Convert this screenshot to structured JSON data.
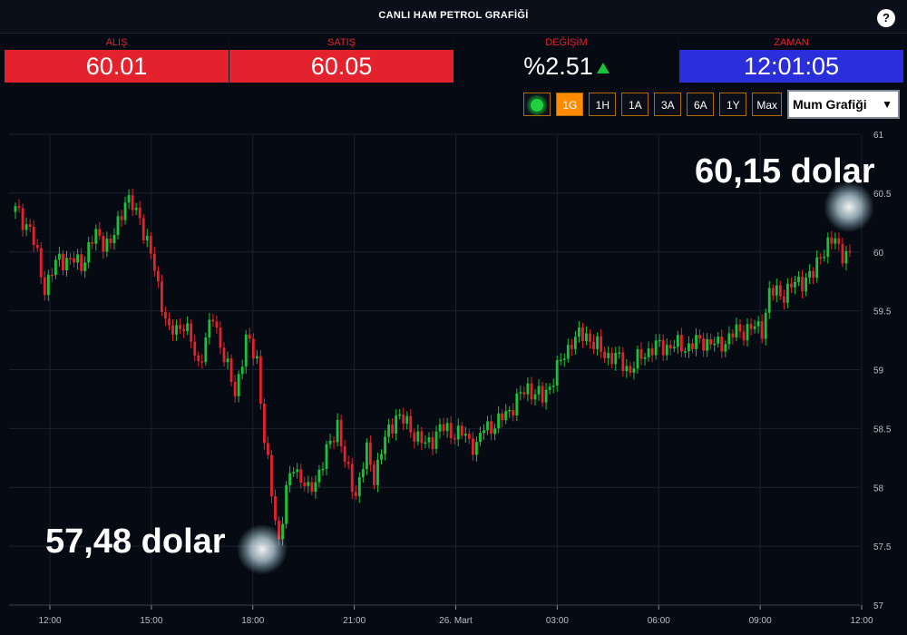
{
  "header": {
    "title": "CANLI HAM PETROL GRAFİĞİ",
    "help_label": "?"
  },
  "quotes": [
    {
      "label": "ALIŞ",
      "value": "60.01"
    },
    {
      "label": "SATIŞ",
      "value": "60.05"
    },
    {
      "label": "DEĞİŞİM",
      "value": "%2.51"
    },
    {
      "label": "ZAMAN",
      "value": "12:01:05"
    }
  ],
  "colors": {
    "up": "#19c23a",
    "down": "#e3222e",
    "accent": "#ff8b00",
    "time_bg": "#2a2edb"
  },
  "toolbar": {
    "ranges": [
      "1G",
      "1H",
      "1A",
      "3A",
      "6A",
      "1Y",
      "Max"
    ],
    "active_range": "1G",
    "chart_type": "Mum Grafiği",
    "live_icon": "live-indicator-icon"
  },
  "annotations": {
    "high_label": "60,15 dolar",
    "low_label": "57,48 dolar"
  },
  "chart_data": {
    "type": "candlestick",
    "x_ticks": [
      "12:00",
      "15:00",
      "18:00",
      "21:00",
      "26. Mart",
      "03:00",
      "06:00",
      "09:00",
      "12:00"
    ],
    "y_ticks": [
      57,
      57.5,
      58,
      58.5,
      59,
      59.5,
      60,
      60.5,
      61
    ],
    "ylim": [
      57,
      61
    ],
    "grid": true,
    "high": 60.15,
    "low": 57.48,
    "path": [
      [
        0,
        60.35
      ],
      [
        4,
        60.2
      ],
      [
        8,
        59.7
      ],
      [
        12,
        59.95
      ],
      [
        18,
        59.9
      ],
      [
        22,
        60.15
      ],
      [
        26,
        60.05
      ],
      [
        30,
        60.45
      ],
      [
        34,
        60.3
      ],
      [
        38,
        59.85
      ],
      [
        42,
        59.3
      ],
      [
        46,
        59.4
      ],
      [
        50,
        59.05
      ],
      [
        54,
        59.45
      ],
      [
        58,
        59.0
      ],
      [
        60,
        58.8
      ],
      [
        63,
        59.25
      ],
      [
        66,
        59.1
      ],
      [
        68,
        58.4
      ],
      [
        70,
        57.95
      ],
      [
        72,
        57.55
      ],
      [
        74,
        57.95
      ],
      [
        76,
        58.2
      ],
      [
        80,
        57.95
      ],
      [
        84,
        58.2
      ],
      [
        88,
        58.55
      ],
      [
        90,
        58.2
      ],
      [
        93,
        57.95
      ],
      [
        96,
        58.3
      ],
      [
        98,
        58.1
      ],
      [
        101,
        58.4
      ],
      [
        104,
        58.62
      ],
      [
        108,
        58.5
      ],
      [
        112,
        58.35
      ],
      [
        116,
        58.5
      ],
      [
        122,
        58.45
      ],
      [
        126,
        58.35
      ],
      [
        128,
        58.5
      ],
      [
        132,
        58.55
      ],
      [
        136,
        58.7
      ],
      [
        140,
        58.85
      ],
      [
        144,
        58.75
      ],
      [
        148,
        59.0
      ],
      [
        152,
        59.25
      ],
      [
        156,
        59.3
      ],
      [
        160,
        59.15
      ],
      [
        164,
        59.1
      ],
      [
        168,
        59.0
      ],
      [
        172,
        59.15
      ],
      [
        176,
        59.2
      ],
      [
        180,
        59.2
      ],
      [
        184,
        59.2
      ],
      [
        188,
        59.25
      ],
      [
        192,
        59.2
      ],
      [
        196,
        59.3
      ],
      [
        200,
        59.35
      ],
      [
        204,
        59.35
      ],
      [
        206,
        59.65
      ],
      [
        210,
        59.65
      ],
      [
        214,
        59.75
      ],
      [
        218,
        59.8
      ],
      [
        220,
        60.0
      ],
      [
        224,
        60.1
      ],
      [
        226,
        60.0
      ],
      [
        228,
        59.95
      ]
    ]
  }
}
